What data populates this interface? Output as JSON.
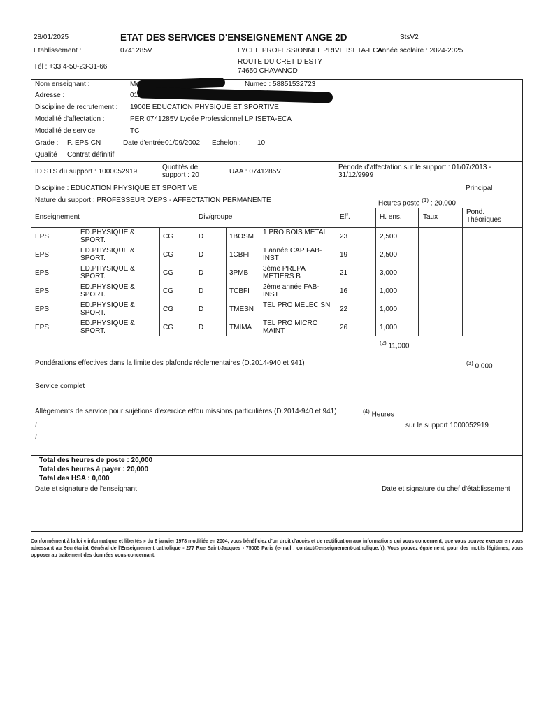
{
  "header": {
    "date": "28/01/2025",
    "title": "ETAT DES SERVICES D'ENSEIGNEMENT ANGE 2D",
    "code": "StsV2",
    "etablissement_label": "Etablissement :",
    "etablissement_value": "0741285V",
    "school_name": "LYCEE PROFESSIONNEL PRIVE ISETA-ECA",
    "school_year": "Année scolaire : 2024-2025",
    "phone": "Tél : +33 4-50-23-31-66",
    "address_line1": "ROUTE DU CRET D ESTY",
    "address_line2": "74650 CHAVANOD"
  },
  "teacher": {
    "name_label": "Nom enseignant :",
    "name_value": "Monsieur R",
    "numec": "Numec : 58851532723",
    "address_label": "Adresse :",
    "address_value": "012",
    "discipline_label": "Discipline de recrutement :",
    "discipline_value": "1900E EDUCATION PHYSIQUE ET SPORTIVE",
    "affectation_label": "Modalité d'affectation :",
    "affectation_value": "PER 0741285V Lycée Professionnel LP ISETA-ECA",
    "service_label": "Modalité de service",
    "service_value": "TC",
    "grade_label": "Grade :",
    "grade_value": "P. EPS CN",
    "entry_label": "Date d'entrée",
    "entry_value": "01/09/2002",
    "echelon_label": "Echelon :",
    "echelon_value": "10",
    "qualite_label": "Qualité",
    "qualite_value": "Contrat définitif"
  },
  "support": {
    "id": "ID STS du support : 1000052919",
    "quotites": "Quotités de support : 20",
    "uaa": "UAA : 0741285V",
    "periode": "Période d'affectation sur le support : 01/07/2013 - 31/12/9999",
    "discipline": "Discipline : EDUCATION PHYSIQUE ET SPORTIVE",
    "principal": "Principal",
    "nature": "Nature du support : PROFESSEUR D'EPS - AFFECTATION PERMANENTE",
    "heures_poste_label": "Heures poste",
    "heures_poste_note": "(1)",
    "heures_poste_value": ": 20,000"
  },
  "table": {
    "headers": [
      "Enseignement",
      "Div/groupe",
      "Eff.",
      "H. ens.",
      "Taux",
      "Pond. Théoriques"
    ],
    "rows": [
      [
        "EPS",
        "ED.PHYSIQUE & SPORT.",
        "CG",
        "D",
        "1BOSM",
        "1 PRO BOIS METAL",
        "23",
        "2,500"
      ],
      [
        "EPS",
        "ED.PHYSIQUE & SPORT.",
        "CG",
        "D",
        "1CBFI",
        "1 année CAP FAB-INST",
        "19",
        "2,500"
      ],
      [
        "EPS",
        "ED.PHYSIQUE & SPORT.",
        "CG",
        "D",
        "3PMB",
        "3ème PREPA METIERS B",
        "21",
        "3,000"
      ],
      [
        "EPS",
        "ED.PHYSIQUE & SPORT.",
        "CG",
        "D",
        "TCBFI",
        "2ème année FAB-INST",
        "16",
        "1,000"
      ],
      [
        "EPS",
        "ED.PHYSIQUE & SPORT.",
        "CG",
        "D",
        "TMESN",
        "TEL PRO MELEC SN",
        "22",
        "1,000"
      ],
      [
        "EPS",
        "ED.PHYSIQUE & SPORT.",
        "CG",
        "D",
        "TMIMA",
        "TEL PRO MICRO MAINT",
        "26",
        "1,000"
      ]
    ],
    "total_note": "(2)",
    "total_value": "11,000"
  },
  "details": {
    "ponderations": "Pondérations effectives dans la limite des plafonds réglementaires (D.2014-940 et 941)",
    "ponderations_note": "(3)",
    "ponderations_value": "0,000",
    "service_complet": "Service complet",
    "allegements": "Allègements de service pour sujétions d'exercice et/ou missions particulières (D.2014-940 et 941)",
    "allegements_note": "(4)",
    "allegements_unit": "Heures",
    "sur_support": "sur le support 1000052919",
    "slash1": "/",
    "slash2": "/"
  },
  "totals": {
    "poste": "Total des heures de poste : 20,000",
    "payer": "Total des heures à payer : 20,000",
    "hsa": "Total des HSA : 0,000",
    "sign_teacher": "Date et signature de l'enseignant",
    "sign_head": "Date et signature du chef d'établissement"
  },
  "footer": {
    "text": "Conformément à la loi « informatique et libertés » du 6 janvier 1978 modifiée en 2004, vous bénéficiez d'un droit d'accès et de rectification aux informations qui vous concernent, que vous pouvez exercer en vous adressant au Secrétariat Général de l'Enseignement catholique - 277 Rue Saint-Jacques - 75005 Paris (e-mail : contact@enseignement-catholique.fr). Vous pouvez également, pour des motifs légitimes, vous opposer au traitement des données vous concernant."
  }
}
